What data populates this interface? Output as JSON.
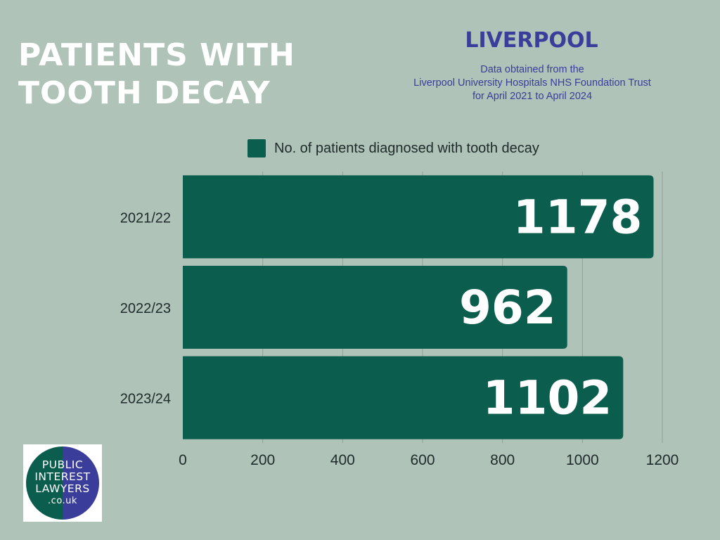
{
  "header": {
    "title_line1": "PATIENTS WITH",
    "title_line2": "TOOTH DECAY",
    "city": "LIVERPOOL",
    "source_line1": "Data obtained from the",
    "source_line2": "Liverpool University Hospitals NHS Foundation Trust",
    "source_line3": "for April 2021 to April 2024"
  },
  "logo": {
    "line1": "PUBLIC",
    "line2": "INTEREST",
    "line3": "LAWYERS",
    "line4": ".co.uk"
  },
  "colors": {
    "background": "#afc3b8",
    "bar": "#0b5e4d",
    "accent": "#3a3d9a",
    "title": "#ffffff"
  },
  "chart_data": {
    "type": "bar",
    "orientation": "horizontal",
    "categories": [
      "2021/22",
      "2022/23",
      "2023/24"
    ],
    "series": [
      {
        "name": "No. of patients diagnosed with tooth decay",
        "values": [
          1178,
          962,
          1102
        ]
      }
    ],
    "data_labels": [
      "1178",
      "962",
      "1102"
    ],
    "xlim": [
      0,
      1200
    ],
    "xticks": [
      0,
      200,
      400,
      600,
      800,
      1000,
      1200
    ],
    "grid": true,
    "legend": "top"
  }
}
